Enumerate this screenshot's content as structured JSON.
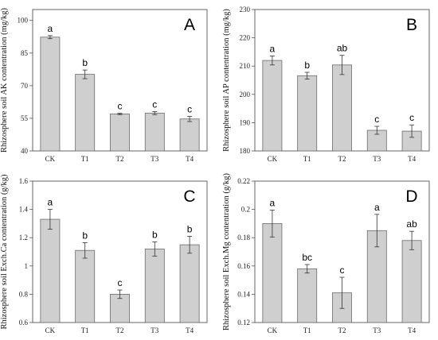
{
  "chart_data": [
    {
      "type": "bar",
      "panel_label": "A",
      "ylabel": "Rhizosphere soil AK contentration (mg/kg)",
      "categories": [
        "CK",
        "T1",
        "T2",
        "T3",
        "T4"
      ],
      "values": [
        92.3,
        75.2,
        57.0,
        57.4,
        54.7
      ],
      "errors": [
        0.7,
        2.0,
        0.3,
        0.7,
        1.2
      ],
      "significance": [
        "a",
        "b",
        "c",
        "c",
        "c"
      ],
      "ylim": [
        40,
        105
      ],
      "yticks": [
        40,
        55,
        70,
        85,
        100
      ],
      "grid": false
    },
    {
      "type": "bar",
      "panel_label": "B",
      "ylabel": "Rhizosphere soil AP contentration (mg/kg)",
      "categories": [
        "CK",
        "T1",
        "T2",
        "T3",
        "T4"
      ],
      "values": [
        212.0,
        206.6,
        210.4,
        187.3,
        187.0
      ],
      "errors": [
        1.6,
        1.2,
        3.4,
        1.4,
        2.2
      ],
      "significance": [
        "a",
        "b",
        "ab",
        "c",
        "c"
      ],
      "ylim": [
        180,
        230
      ],
      "yticks": [
        180,
        190,
        200,
        210,
        220,
        230
      ],
      "grid": false
    },
    {
      "type": "bar",
      "panel_label": "C",
      "ylabel": "Rhizosphere soil Exch.Ca contentration (g/kg)",
      "categories": [
        "CK",
        "T1",
        "T2",
        "T3",
        "T4"
      ],
      "values": [
        1.33,
        1.11,
        0.8,
        1.12,
        1.15
      ],
      "errors": [
        0.07,
        0.055,
        0.03,
        0.05,
        0.06
      ],
      "significance": [
        "a",
        "b",
        "c",
        "b",
        "b"
      ],
      "ylim": [
        0.6,
        1.6
      ],
      "yticks": [
        0.6,
        0.8,
        1.0,
        1.2,
        1.4,
        1.6
      ],
      "ytick_labels": [
        "0.6",
        "0.8",
        "1",
        "1.2",
        "1.4",
        "1.6"
      ],
      "grid": false
    },
    {
      "type": "bar",
      "panel_label": "D",
      "ylabel": "Rhizosphere soil Exch.Mg contentration (g/kg)",
      "categories": [
        "CK",
        "T1",
        "T2",
        "T3",
        "T4"
      ],
      "values": [
        0.19,
        0.158,
        0.141,
        0.185,
        0.178
      ],
      "errors": [
        0.0095,
        0.003,
        0.011,
        0.0115,
        0.0065
      ],
      "significance": [
        "a",
        "bc",
        "c",
        "a",
        "ab"
      ],
      "ylim": [
        0.12,
        0.22
      ],
      "yticks": [
        0.12,
        0.14,
        0.16,
        0.18,
        0.2,
        0.22
      ],
      "ytick_labels": [
        "0.12",
        "0.14",
        "0.16",
        "0.18",
        "0.2",
        "0.22"
      ],
      "grid": false
    }
  ]
}
